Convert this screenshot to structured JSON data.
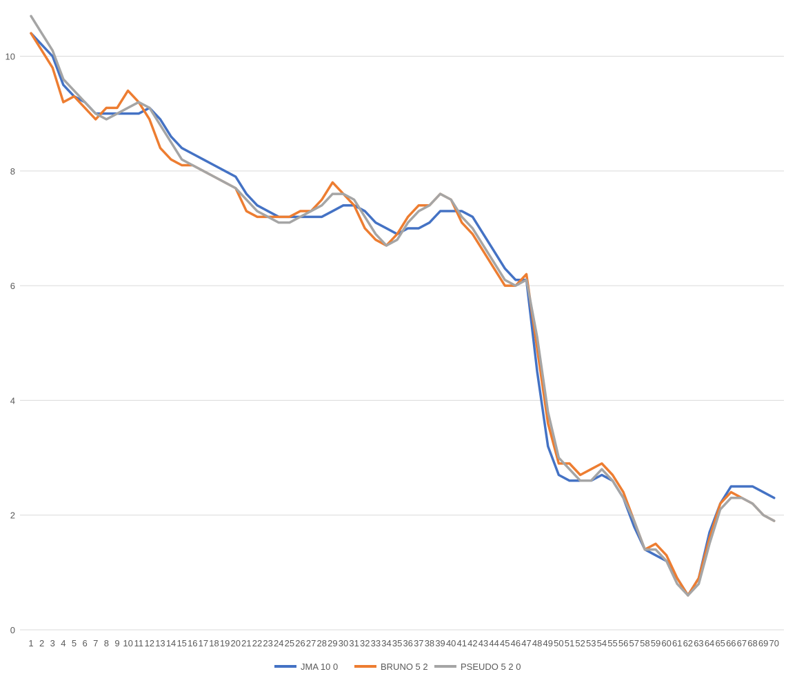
{
  "chart_data": {
    "type": "line",
    "title": "",
    "xlabel": "",
    "ylabel": "",
    "ylim": [
      0,
      10.8
    ],
    "yticks": [
      0,
      2,
      4,
      6,
      8,
      10
    ],
    "grid": "horizontal",
    "legend_position": "bottom",
    "x": [
      1,
      2,
      3,
      4,
      5,
      6,
      7,
      8,
      9,
      10,
      11,
      12,
      13,
      14,
      15,
      16,
      17,
      18,
      19,
      20,
      21,
      22,
      23,
      24,
      25,
      26,
      27,
      28,
      29,
      30,
      31,
      32,
      33,
      34,
      35,
      36,
      37,
      38,
      39,
      40,
      41,
      42,
      43,
      44,
      45,
      46,
      47,
      48,
      49,
      50,
      51,
      52,
      53,
      54,
      55,
      56,
      57,
      58,
      59,
      60,
      61,
      62,
      63,
      64,
      65,
      66,
      67,
      68,
      69,
      70
    ],
    "series": [
      {
        "name": "JMA 10 0",
        "color": "#4472c4",
        "values": [
          10.4,
          10.2,
          10.0,
          9.5,
          9.3,
          9.2,
          9.0,
          9.0,
          9.0,
          9.0,
          9.0,
          9.1,
          8.9,
          8.6,
          8.4,
          8.3,
          8.2,
          8.1,
          8.0,
          7.9,
          7.6,
          7.4,
          7.3,
          7.2,
          7.2,
          7.2,
          7.2,
          7.2,
          7.3,
          7.4,
          7.4,
          7.3,
          7.1,
          7.0,
          6.9,
          7.0,
          7.0,
          7.1,
          7.3,
          7.3,
          7.3,
          7.2,
          6.9,
          6.6,
          6.3,
          6.1,
          6.1,
          4.5,
          3.2,
          2.7,
          2.6,
          2.6,
          2.6,
          2.7,
          2.6,
          2.3,
          1.8,
          1.4,
          1.3,
          1.2,
          0.9,
          0.6,
          0.9,
          1.7,
          2.2,
          2.5,
          2.5,
          2.5,
          2.4,
          2.3
        ]
      },
      {
        "name": "BRUNO 5 2",
        "color": "#ed7d31",
        "values": [
          10.4,
          10.1,
          9.8,
          9.2,
          9.3,
          9.1,
          8.9,
          9.1,
          9.1,
          9.4,
          9.2,
          8.9,
          8.4,
          8.2,
          8.1,
          8.1,
          8.0,
          7.9,
          7.8,
          7.7,
          7.3,
          7.2,
          7.2,
          7.2,
          7.2,
          7.3,
          7.3,
          7.5,
          7.8,
          7.6,
          7.4,
          7.0,
          6.8,
          6.7,
          6.9,
          7.2,
          7.4,
          7.4,
          7.6,
          7.5,
          7.1,
          6.9,
          6.6,
          6.3,
          6.0,
          6.0,
          6.2,
          4.9,
          3.6,
          2.9,
          2.9,
          2.7,
          2.8,
          2.9,
          2.7,
          2.4,
          1.9,
          1.4,
          1.5,
          1.3,
          0.9,
          0.6,
          0.9,
          1.6,
          2.2,
          2.4,
          2.3,
          2.2,
          2.0,
          1.9
        ]
      },
      {
        "name": "PSEUDO 5 2 0",
        "color": "#a5a5a5",
        "values": [
          10.7,
          10.4,
          10.1,
          9.6,
          9.4,
          9.2,
          9.0,
          8.9,
          9.0,
          9.1,
          9.2,
          9.1,
          8.8,
          8.5,
          8.2,
          8.1,
          8.0,
          7.9,
          7.8,
          7.7,
          7.5,
          7.3,
          7.2,
          7.1,
          7.1,
          7.2,
          7.3,
          7.4,
          7.6,
          7.6,
          7.5,
          7.2,
          6.9,
          6.7,
          6.8,
          7.1,
          7.3,
          7.4,
          7.6,
          7.5,
          7.2,
          7.0,
          6.7,
          6.4,
          6.1,
          6.0,
          6.1,
          5.1,
          3.8,
          3.0,
          2.8,
          2.6,
          2.6,
          2.8,
          2.6,
          2.3,
          1.9,
          1.4,
          1.4,
          1.2,
          0.8,
          0.6,
          0.8,
          1.5,
          2.1,
          2.3,
          2.3,
          2.2,
          2.0,
          1.9
        ]
      }
    ]
  }
}
